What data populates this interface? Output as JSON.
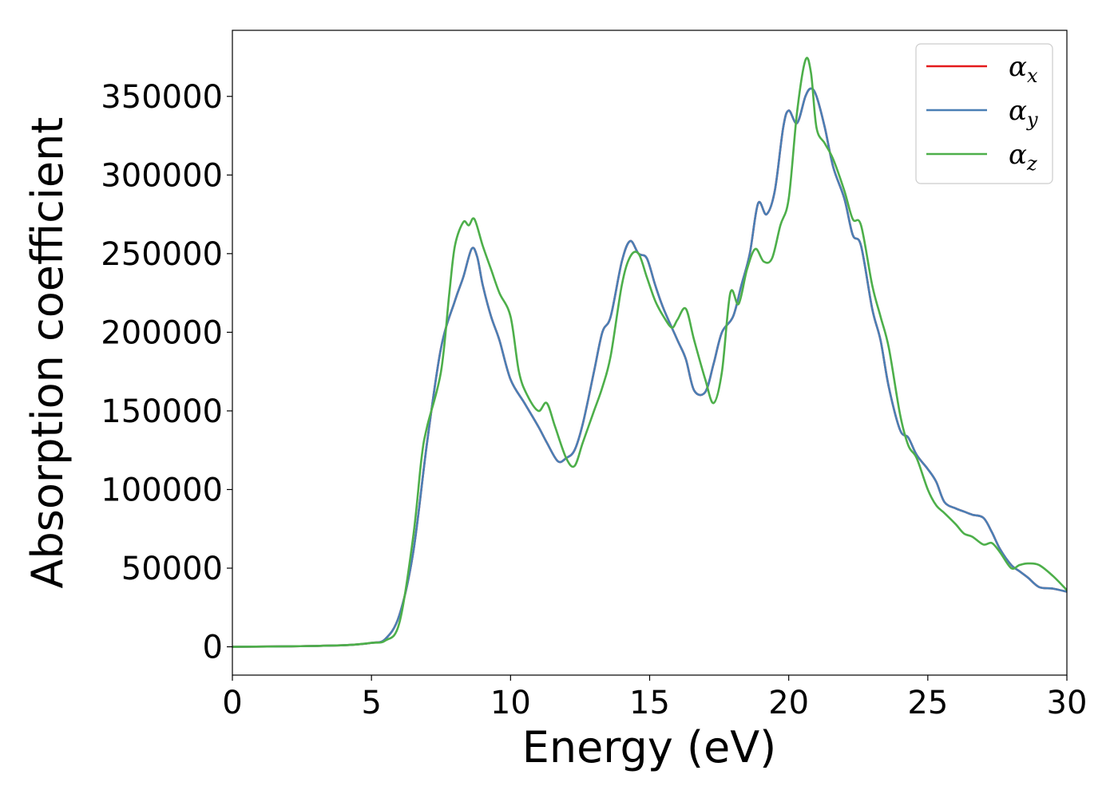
{
  "chart_data": {
    "type": "line",
    "xlabel": "Energy (eV)",
    "ylabel": "Absorption coefficient",
    "xlim": [
      0,
      30
    ],
    "ylim": [
      -18000,
      392000
    ],
    "xticks": [
      0,
      5,
      10,
      15,
      20,
      25,
      30
    ],
    "xtick_labels": [
      "0",
      "5",
      "10",
      "15",
      "20",
      "25",
      "30"
    ],
    "yticks": [
      0,
      50000,
      100000,
      150000,
      200000,
      250000,
      300000,
      350000
    ],
    "ytick_labels": [
      "0",
      "50000",
      "100000",
      "150000",
      "200000",
      "250000",
      "300000",
      "350000"
    ],
    "grid": false,
    "legend_position": "top-right",
    "series": [
      {
        "name": "αx",
        "legend_symbol": "α",
        "legend_subscript": "x",
        "color": "#e41a1c",
        "x": [
          0,
          2,
          4,
          5,
          5.5,
          6,
          6.5,
          7,
          7.5,
          8,
          8.3,
          8.6,
          8.8,
          9,
          9.3,
          9.6,
          10,
          10.5,
          11,
          11.3,
          11.7,
          12,
          12.3,
          12.6,
          13,
          13.3,
          13.6,
          14,
          14.3,
          14.6,
          14.9,
          15.2,
          15.5,
          16,
          16.3,
          16.6,
          17,
          17.3,
          17.6,
          18,
          18.3,
          18.6,
          18.9,
          19.2,
          19.5,
          19.8,
          20,
          20.3,
          20.6,
          20.8,
          21,
          21.3,
          21.6,
          22,
          22.3,
          22.6,
          23,
          23.3,
          23.6,
          24,
          24.3,
          24.6,
          25,
          25.3,
          25.6,
          26,
          26.3,
          26.6,
          27,
          27.3,
          27.6,
          28,
          28.3,
          28.6,
          29,
          29.5,
          30
        ],
        "y": [
          0,
          300,
          1000,
          2500,
          5000,
          20000,
          60000,
          130000,
          190000,
          220000,
          235000,
          253000,
          248000,
          230000,
          210000,
          195000,
          170000,
          155000,
          140000,
          130000,
          118000,
          120000,
          125000,
          142000,
          175000,
          200000,
          210000,
          245000,
          258000,
          250000,
          247000,
          230000,
          215000,
          195000,
          183000,
          163000,
          162000,
          180000,
          200000,
          210000,
          230000,
          250000,
          282000,
          275000,
          290000,
          330000,
          341000,
          333000,
          350000,
          355000,
          350000,
          330000,
          305000,
          285000,
          262000,
          255000,
          215000,
          195000,
          165000,
          138000,
          133000,
          122000,
          113000,
          105000,
          92000,
          88000,
          86000,
          84000,
          82000,
          73000,
          62000,
          52000,
          48000,
          44000,
          38000,
          37000,
          35000
        ]
      },
      {
        "name": "αy",
        "legend_symbol": "α",
        "legend_subscript": "y",
        "color": "#4a7fb5",
        "x": [
          0,
          2,
          4,
          5,
          5.5,
          6,
          6.5,
          7,
          7.5,
          8,
          8.3,
          8.6,
          8.8,
          9,
          9.3,
          9.6,
          10,
          10.5,
          11,
          11.3,
          11.7,
          12,
          12.3,
          12.6,
          13,
          13.3,
          13.6,
          14,
          14.3,
          14.6,
          14.9,
          15.2,
          15.5,
          16,
          16.3,
          16.6,
          17,
          17.3,
          17.6,
          18,
          18.3,
          18.6,
          18.9,
          19.2,
          19.5,
          19.8,
          20,
          20.3,
          20.6,
          20.8,
          21,
          21.3,
          21.6,
          22,
          22.3,
          22.6,
          23,
          23.3,
          23.6,
          24,
          24.3,
          24.6,
          25,
          25.3,
          25.6,
          26,
          26.3,
          26.6,
          27,
          27.3,
          27.6,
          28,
          28.3,
          28.6,
          29,
          29.5,
          30
        ],
        "y": [
          0,
          300,
          1000,
          2500,
          5000,
          20000,
          60000,
          130000,
          190000,
          220000,
          235000,
          253000,
          248000,
          230000,
          210000,
          195000,
          170000,
          155000,
          140000,
          130000,
          118000,
          120000,
          125000,
          142000,
          175000,
          200000,
          210000,
          245000,
          258000,
          250000,
          247000,
          230000,
          215000,
          195000,
          183000,
          163000,
          162000,
          180000,
          200000,
          210000,
          230000,
          250000,
          282000,
          275000,
          290000,
          330000,
          341000,
          333000,
          350000,
          355000,
          350000,
          330000,
          305000,
          285000,
          262000,
          255000,
          215000,
          195000,
          165000,
          138000,
          133000,
          122000,
          113000,
          105000,
          92000,
          88000,
          86000,
          84000,
          82000,
          73000,
          62000,
          52000,
          48000,
          44000,
          38000,
          37000,
          35000
        ]
      },
      {
        "name": "αz",
        "legend_symbol": "α",
        "legend_subscript": "z",
        "color": "#4daf4a",
        "x": [
          0,
          2,
          4,
          5,
          5.5,
          6,
          6.5,
          6.8,
          7,
          7.5,
          7.8,
          8,
          8.3,
          8.5,
          8.7,
          9,
          9.3,
          9.6,
          10,
          10.3,
          10.6,
          11,
          11.3,
          11.6,
          12,
          12.3,
          12.6,
          13,
          13.3,
          13.6,
          14,
          14.3,
          14.6,
          14.9,
          15.2,
          15.5,
          15.8,
          16,
          16.3,
          16.6,
          17,
          17.3,
          17.6,
          17.9,
          18.2,
          18.5,
          18.8,
          19.1,
          19.4,
          19.7,
          20,
          20.3,
          20.6,
          20.8,
          21,
          21.3,
          21.6,
          22,
          22.3,
          22.6,
          23,
          23.3,
          23.6,
          24,
          24.3,
          24.6,
          25,
          25.3,
          25.6,
          26,
          26.3,
          26.6,
          27,
          27.3,
          27.6,
          28,
          28.3,
          28.6,
          29,
          29.5,
          30
        ],
        "y": [
          0,
          300,
          1000,
          2500,
          4000,
          15000,
          70000,
          120000,
          140000,
          175000,
          225000,
          255000,
          270000,
          268000,
          272000,
          255000,
          240000,
          225000,
          210000,
          175000,
          160000,
          150000,
          155000,
          140000,
          120000,
          115000,
          130000,
          150000,
          165000,
          185000,
          230000,
          248000,
          250000,
          235000,
          220000,
          210000,
          203000,
          208000,
          215000,
          195000,
          170000,
          155000,
          175000,
          225000,
          218000,
          240000,
          253000,
          245000,
          247000,
          268000,
          285000,
          340000,
          373000,
          365000,
          330000,
          320000,
          310000,
          290000,
          272000,
          268000,
          230000,
          210000,
          190000,
          148000,
          128000,
          120000,
          100000,
          90000,
          85000,
          78000,
          72000,
          70000,
          65000,
          66000,
          60000,
          50000,
          52000,
          53000,
          52000,
          45000,
          36000
        ]
      }
    ]
  }
}
